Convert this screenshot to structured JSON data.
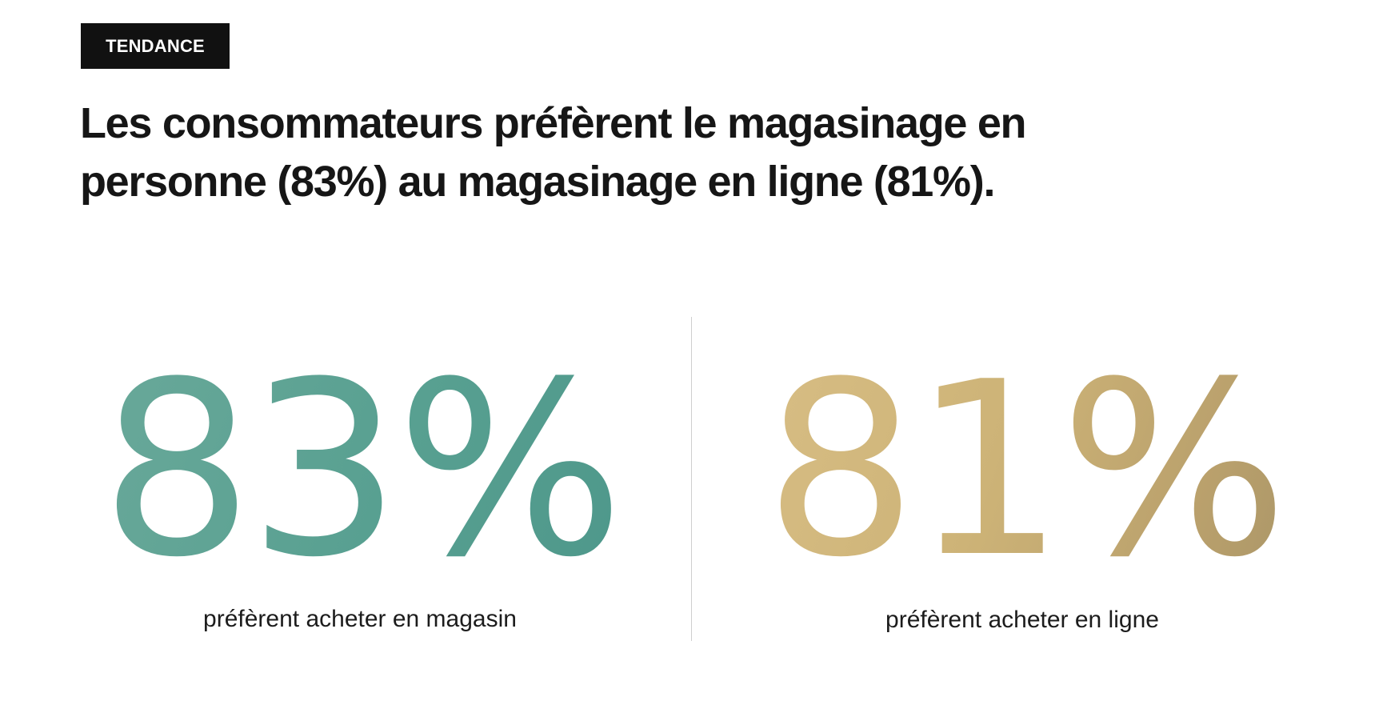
{
  "tag": {
    "label": "TENDANCE"
  },
  "headline": {
    "line1": "Les consommateurs préfèrent le magasinage en",
    "line2": "personne (83%) au magasinage en ligne (81%)."
  },
  "stats": [
    {
      "value": "83%",
      "percent": 83,
      "label": "préfèrent acheter en magasin",
      "color": "#5aa293"
    },
    {
      "value": "81%",
      "percent": 81,
      "label": "préfèrent acheter en ligne",
      "color": "#cdb377"
    }
  ]
}
